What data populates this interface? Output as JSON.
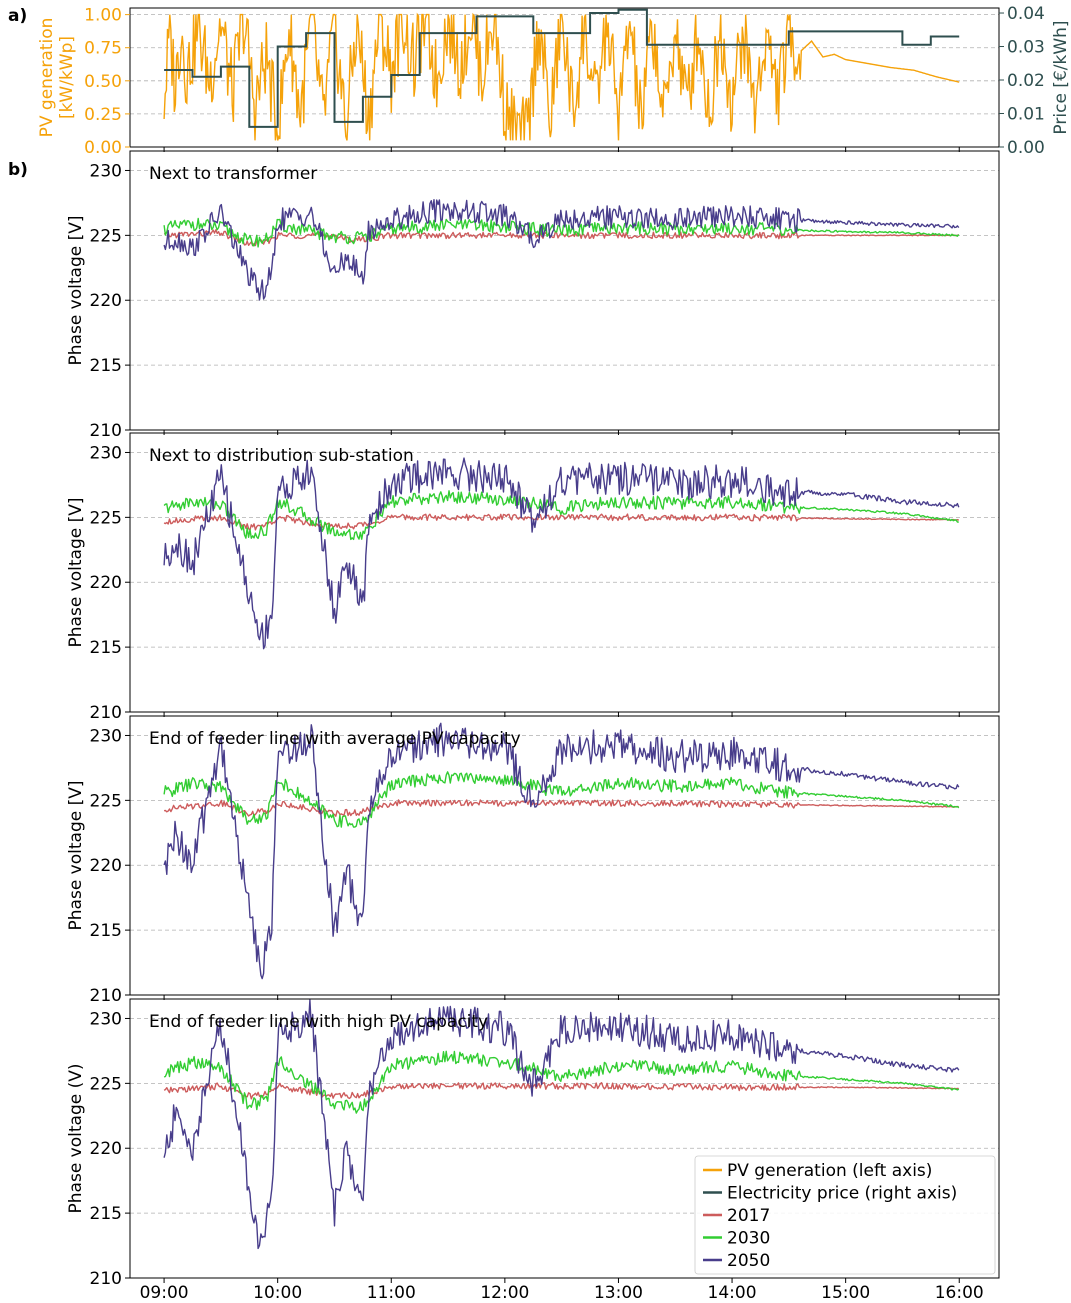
{
  "panel_labels": [
    "a)",
    "b)"
  ],
  "x_ticks": [
    "09:00",
    "10:00",
    "11:00",
    "12:00",
    "13:00",
    "14:00",
    "15:00",
    "16:00"
  ],
  "colors": {
    "pv": "#f5a20a",
    "price": "#2f4f4f",
    "y2017": "#cd5c5c",
    "y2030": "#32cd32",
    "y2050": "#483d8b"
  },
  "legend": [
    {
      "label": "PV generation (left axis)",
      "color_key": "pv"
    },
    {
      "label": "Electricity price (right axis)",
      "color_key": "price"
    },
    {
      "label": "2017",
      "color_key": "y2017"
    },
    {
      "label": "2030",
      "color_key": "y2030"
    },
    {
      "label": "2050",
      "color_key": "y2050"
    }
  ],
  "chart_data": [
    {
      "type": "line",
      "id": "pv_price",
      "x_unit": "hour of day",
      "xlim": [
        8.7,
        16.35
      ],
      "left_axis": {
        "label_line1": "PV generation",
        "label_line2": "[kW/kWp]",
        "ylim": [
          0,
          1.05
        ],
        "ticks": [
          "0.00",
          "0.25",
          "0.50",
          "0.75",
          "1.00"
        ]
      },
      "right_axis": {
        "label": "Price [€/kWh]",
        "ylim": [
          0,
          0.0415
        ],
        "ticks": [
          "0.00",
          "0.01",
          "0.02",
          "0.03",
          "0.04"
        ]
      },
      "series": [
        {
          "name": "PV generation (left axis)",
          "color_key": "pv",
          "axis": "left",
          "x": [
            9.0,
            9.05,
            9.1,
            9.15,
            9.2,
            9.3,
            9.4,
            9.5,
            9.6,
            9.7,
            9.8,
            9.9,
            10.0,
            10.1,
            10.2,
            10.3,
            10.4,
            10.5,
            10.6,
            10.7,
            10.8,
            10.9,
            11.0,
            11.1,
            11.2,
            11.3,
            11.4,
            11.5,
            11.6,
            11.7,
            11.8,
            11.9,
            12.0,
            12.1,
            12.2,
            12.3,
            12.4,
            12.5,
            12.6,
            12.7,
            12.8,
            12.9,
            13.0,
            13.1,
            13.2,
            13.3,
            13.4,
            13.5,
            13.6,
            13.7,
            13.8,
            13.9,
            14.0,
            14.1,
            14.2,
            14.3,
            14.4,
            14.5,
            14.6,
            14.7,
            14.8,
            14.9,
            15.0,
            15.2,
            15.4,
            15.6,
            15.8,
            16.0
          ],
          "y": [
            0.35,
            0.85,
            0.45,
            0.92,
            0.55,
            0.9,
            0.5,
            0.95,
            0.4,
            0.98,
            0.3,
            0.7,
            0.1,
            0.9,
            0.25,
            0.95,
            0.2,
            0.92,
            0.15,
            0.96,
            0.2,
            0.98,
            0.55,
            1.0,
            0.6,
            0.98,
            0.5,
            0.99,
            0.6,
            0.98,
            0.55,
            0.99,
            0.3,
            0.1,
            0.08,
            0.95,
            0.2,
            0.98,
            0.25,
            0.9,
            0.3,
            0.98,
            0.2,
            0.95,
            0.15,
            0.93,
            0.2,
            0.92,
            0.3,
            0.9,
            0.25,
            0.9,
            0.35,
            0.88,
            0.3,
            0.85,
            0.4,
            0.82,
            0.72,
            0.8,
            0.68,
            0.7,
            0.66,
            0.63,
            0.6,
            0.58,
            0.53,
            0.49
          ]
        },
        {
          "name": "Electricity price (right axis)",
          "color_key": "price",
          "axis": "right",
          "step": true,
          "x": [
            9.0,
            9.25,
            9.5,
            9.75,
            10.0,
            10.25,
            10.5,
            10.75,
            11.0,
            11.25,
            11.5,
            11.75,
            12.0,
            12.25,
            12.5,
            12.75,
            13.0,
            13.25,
            13.5,
            13.75,
            14.0,
            14.25,
            14.5,
            14.75,
            15.0,
            15.25,
            15.5,
            15.75,
            16.0
          ],
          "y": [
            0.023,
            0.021,
            0.024,
            0.006,
            0.03,
            0.034,
            0.0075,
            0.015,
            0.0215,
            0.034,
            0.034,
            0.039,
            0.039,
            0.034,
            0.034,
            0.04,
            0.041,
            0.0305,
            0.0305,
            0.0305,
            0.0305,
            0.0305,
            0.0345,
            0.0345,
            0.0345,
            0.0345,
            0.0305,
            0.033,
            0.033
          ]
        }
      ]
    },
    {
      "type": "line",
      "id": "transformer",
      "title": "Next to transformer",
      "ylabel": "Phase voltage [V]",
      "ylim": [
        210,
        231.5
      ],
      "yticks": [
        "210",
        "215",
        "220",
        "225",
        "230"
      ],
      "series": [
        {
          "name": "2017",
          "color_key": "y2017",
          "x": [
            9.0,
            9.5,
            9.75,
            9.9,
            10.0,
            10.5,
            10.6,
            10.75,
            11.0,
            12.0,
            13.0,
            14.0,
            15.0,
            16.0
          ],
          "y": [
            225.0,
            225.2,
            224.3,
            224.5,
            225.0,
            225.0,
            224.7,
            224.7,
            225.0,
            225.0,
            225.0,
            225.0,
            225.0,
            225.0
          ]
        },
        {
          "name": "2030",
          "color_key": "y2030",
          "x": [
            9.0,
            9.25,
            9.5,
            9.75,
            9.9,
            10.0,
            10.5,
            10.75,
            11.0,
            11.5,
            12.0,
            12.5,
            13.0,
            13.5,
            14.0,
            14.5,
            15.0,
            15.5,
            16.0
          ],
          "y": [
            225.5,
            225.9,
            225.6,
            224.5,
            224.7,
            225.8,
            224.9,
            224.8,
            225.5,
            225.8,
            225.7,
            225.3,
            225.6,
            225.5,
            225.6,
            225.4,
            225.3,
            225.2,
            225.0
          ]
        },
        {
          "name": "2050",
          "color_key": "y2050",
          "x": [
            9.0,
            9.1,
            9.25,
            9.5,
            9.75,
            9.85,
            9.95,
            10.0,
            10.3,
            10.5,
            10.6,
            10.75,
            10.8,
            11.0,
            11.3,
            11.5,
            12.0,
            12.25,
            12.5,
            13.0,
            13.5,
            14.0,
            14.5,
            15.0,
            15.5,
            16.0
          ],
          "y": [
            224.3,
            224.8,
            224.0,
            226.8,
            221.8,
            220.5,
            222.0,
            226.2,
            226.7,
            221.8,
            223.5,
            221.5,
            225.3,
            226.2,
            226.8,
            227.0,
            226.5,
            224.8,
            226.3,
            226.4,
            226.2,
            226.5,
            226.2,
            226.0,
            225.8,
            225.7
          ]
        }
      ]
    },
    {
      "type": "line",
      "id": "substation",
      "title": "Next to distribution sub-station",
      "ylabel": "Phase voltage [V]",
      "ylim": [
        210,
        231.5
      ],
      "yticks": [
        "210",
        "215",
        "220",
        "225",
        "230"
      ],
      "series": [
        {
          "name": "2017",
          "color_key": "y2017",
          "x": [
            9.0,
            9.5,
            9.75,
            9.9,
            10.0,
            10.5,
            10.75,
            11.0,
            12.0,
            13.0,
            14.0,
            15.0,
            16.0
          ],
          "y": [
            224.7,
            225.0,
            224.2,
            224.4,
            225.0,
            224.3,
            224.4,
            225.0,
            225.0,
            225.0,
            225.0,
            224.9,
            224.8
          ]
        },
        {
          "name": "2030",
          "color_key": "y2030",
          "x": [
            9.0,
            9.25,
            9.5,
            9.75,
            9.9,
            10.0,
            10.5,
            10.75,
            11.0,
            11.5,
            12.0,
            12.5,
            13.0,
            13.5,
            14.0,
            14.5,
            15.0,
            15.5,
            16.0
          ],
          "y": [
            225.7,
            226.2,
            226.0,
            223.6,
            224.0,
            226.3,
            223.9,
            223.6,
            226.2,
            226.6,
            226.4,
            225.7,
            226.2,
            226.1,
            226.2,
            225.8,
            225.6,
            225.3,
            224.7
          ]
        },
        {
          "name": "2050",
          "color_key": "y2050",
          "x": [
            9.0,
            9.1,
            9.25,
            9.5,
            9.75,
            9.85,
            9.95,
            10.0,
            10.3,
            10.5,
            10.6,
            10.75,
            10.8,
            11.0,
            11.3,
            11.5,
            12.0,
            12.25,
            12.5,
            13.0,
            13.5,
            14.0,
            14.5,
            15.0,
            15.5,
            16.0
          ],
          "y": [
            221.8,
            223.2,
            221.5,
            228.2,
            219.0,
            215.6,
            217.5,
            227.0,
            228.4,
            217.5,
            221.9,
            217.8,
            224.6,
            227.6,
            228.3,
            228.5,
            228.0,
            225.0,
            227.8,
            228.0,
            227.6,
            227.8,
            227.0,
            226.8,
            226.2,
            225.9
          ]
        }
      ]
    },
    {
      "type": "line",
      "id": "feeder_avg",
      "title": "End of feeder line with average PV capacity",
      "ylabel": "Phase voltage [V]",
      "ylim": [
        210,
        231.5
      ],
      "yticks": [
        "210",
        "215",
        "220",
        "225",
        "230"
      ],
      "series": [
        {
          "name": "2017",
          "color_key": "y2017",
          "x": [
            9.0,
            9.5,
            9.75,
            9.9,
            10.0,
            10.5,
            10.75,
            11.0,
            12.0,
            13.0,
            14.0,
            15.0,
            16.0
          ],
          "y": [
            224.3,
            224.8,
            224.0,
            224.2,
            224.8,
            224.0,
            224.1,
            224.8,
            224.8,
            224.8,
            224.7,
            224.6,
            224.5
          ]
        },
        {
          "name": "2030",
          "color_key": "y2030",
          "x": [
            9.0,
            9.25,
            9.5,
            9.75,
            9.9,
            10.0,
            10.5,
            10.75,
            11.0,
            11.5,
            12.0,
            12.5,
            13.0,
            13.5,
            14.0,
            14.5,
            15.0,
            15.5,
            16.0
          ],
          "y": [
            225.6,
            226.3,
            226.0,
            223.4,
            223.8,
            226.6,
            223.5,
            223.2,
            226.3,
            226.8,
            226.6,
            225.6,
            226.3,
            226.1,
            226.3,
            225.6,
            225.3,
            225.0,
            224.5
          ]
        },
        {
          "name": "2050",
          "color_key": "y2050",
          "x": [
            9.0,
            9.1,
            9.25,
            9.5,
            9.75,
            9.85,
            9.95,
            10.0,
            10.3,
            10.5,
            10.6,
            10.75,
            10.8,
            11.0,
            11.3,
            11.5,
            12.0,
            12.25,
            12.5,
            13.0,
            13.5,
            14.0,
            14.5,
            15.0,
            15.5,
            16.0
          ],
          "y": [
            219.3,
            222.5,
            220.0,
            229.5,
            216.5,
            212.0,
            215.5,
            228.5,
            229.8,
            214.8,
            219.8,
            214.9,
            224.4,
            228.5,
            229.5,
            229.7,
            229.0,
            224.8,
            229.0,
            229.2,
            228.4,
            228.6,
            227.5,
            227.0,
            226.4,
            226.0
          ]
        }
      ]
    },
    {
      "type": "line",
      "id": "feeder_high",
      "title": "End of feeder line with high PV capacity",
      "ylabel": "Phase voltage (V)",
      "ylim": [
        210,
        231.5
      ],
      "yticks": [
        "210",
        "215",
        "220",
        "225",
        "230"
      ],
      "xlabel": "",
      "series": [
        {
          "name": "2017",
          "color_key": "y2017",
          "x": [
            9.0,
            9.5,
            9.75,
            9.9,
            10.0,
            10.5,
            10.75,
            11.0,
            12.0,
            13.0,
            14.0,
            15.0,
            16.0
          ],
          "y": [
            224.4,
            224.8,
            224.0,
            224.2,
            224.8,
            224.0,
            224.1,
            224.8,
            224.8,
            224.8,
            224.7,
            224.7,
            224.6
          ]
        },
        {
          "name": "2030",
          "color_key": "y2030",
          "x": [
            9.0,
            9.25,
            9.5,
            9.75,
            9.9,
            10.0,
            10.5,
            10.75,
            11.0,
            11.5,
            12.0,
            12.5,
            13.0,
            13.5,
            14.0,
            14.5,
            15.0,
            15.5,
            16.0
          ],
          "y": [
            225.8,
            226.6,
            226.2,
            223.3,
            223.7,
            226.8,
            223.4,
            223.1,
            226.4,
            227.0,
            226.7,
            225.5,
            226.4,
            226.1,
            226.3,
            225.6,
            225.3,
            225.0,
            224.5
          ]
        },
        {
          "name": "2050",
          "color_key": "y2050",
          "x": [
            9.0,
            9.1,
            9.25,
            9.5,
            9.75,
            9.85,
            9.95,
            10.0,
            10.3,
            10.5,
            10.6,
            10.75,
            10.8,
            11.0,
            11.3,
            11.5,
            12.0,
            12.25,
            12.5,
            13.0,
            13.5,
            14.0,
            14.5,
            15.0,
            15.5,
            16.0
          ],
          "y": [
            219.2,
            222.6,
            220.0,
            229.8,
            217.0,
            212.2,
            216.0,
            228.8,
            230.2,
            215.0,
            220.0,
            215.0,
            224.4,
            228.7,
            229.8,
            230.0,
            229.2,
            224.8,
            229.3,
            229.4,
            228.5,
            228.7,
            227.6,
            227.1,
            226.4,
            226.0
          ]
        }
      ]
    }
  ]
}
